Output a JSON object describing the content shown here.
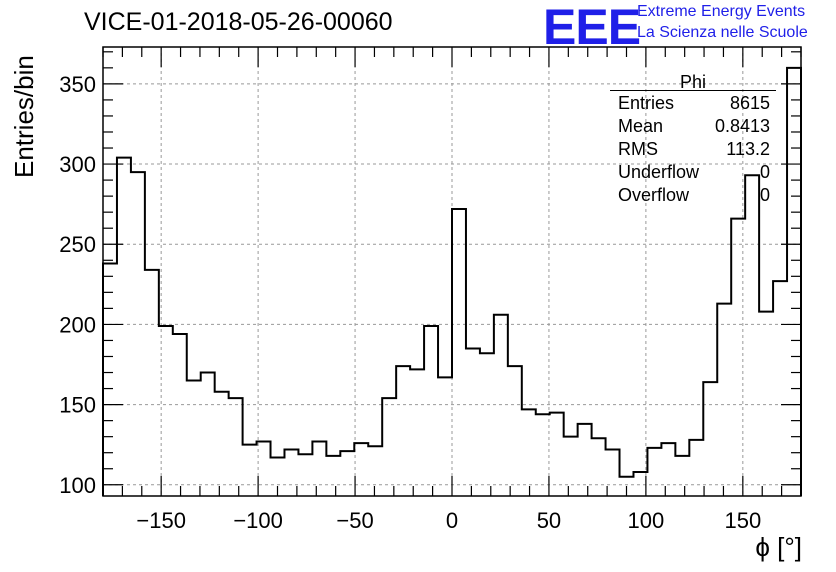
{
  "header": {
    "title": "VICE-01-2018-05-26-00060",
    "logo_text": "EEE",
    "brand_line1": "Extreme Energy Events",
    "brand_line2": "La Scienza nelle Scuole"
  },
  "stats": {
    "title": "Phi",
    "rows": [
      {
        "key": "Entries",
        "value": "8615"
      },
      {
        "key": "Mean",
        "value": "0.8413"
      },
      {
        "key": "RMS",
        "value": "113.2"
      },
      {
        "key": "Underflow",
        "value": "0"
      },
      {
        "key": "Overflow",
        "value": "0"
      }
    ]
  },
  "chart_data": {
    "type": "bar",
    "histogram": true,
    "xlabel": "ϕ [°]",
    "ylabel": "Entries/bin",
    "xlim": [
      -180,
      180
    ],
    "ylim": [
      93,
      373
    ],
    "grid": true,
    "bin_width": 7.2,
    "xticks": [
      -150,
      -100,
      -50,
      0,
      50,
      100,
      150
    ],
    "yticks": [
      100,
      150,
      200,
      250,
      300,
      350
    ],
    "values": [
      238,
      304,
      295,
      234,
      199,
      194,
      165,
      170,
      158,
      154,
      125,
      127,
      117,
      122,
      119,
      127,
      118,
      121,
      126,
      124,
      154,
      174,
      172,
      199,
      167,
      272,
      185,
      182,
      206,
      174,
      147,
      144,
      145,
      130,
      138,
      129,
      122,
      105,
      108,
      123,
      126,
      118,
      128,
      164,
      213,
      266,
      293,
      208,
      227,
      360
    ],
    "line_color": "#000000"
  }
}
